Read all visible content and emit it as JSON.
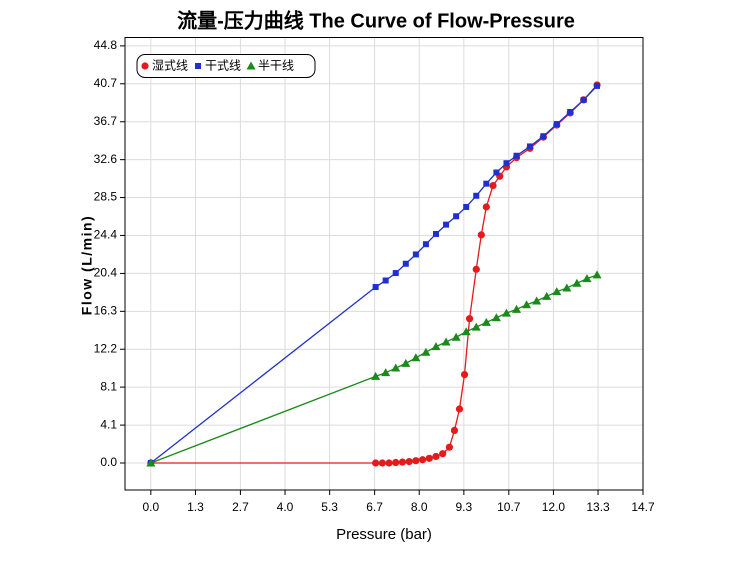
{
  "chart_data": {
    "type": "line",
    "title": "流量-压力曲线 The Curve of Flow-Pressure",
    "x_label": "Pressure (bar)",
    "y_label": "Flow (L/min)",
    "xlim": [
      -0.77,
      14.67
    ],
    "ylim": [
      -2.9,
      45.7
    ],
    "xticks": [
      {
        "value": 0,
        "label": "0.0"
      },
      {
        "value": 1.33,
        "label": "1.3"
      },
      {
        "value": 2.67,
        "label": "2.7"
      },
      {
        "value": 4,
        "label": "4.0"
      },
      {
        "value": 5.33,
        "label": "5.3"
      },
      {
        "value": 6.67,
        "label": "6.7"
      },
      {
        "value": 8,
        "label": "8.0"
      },
      {
        "value": 9.33,
        "label": "9.3"
      },
      {
        "value": 10.67,
        "label": "10.7"
      },
      {
        "value": 12,
        "label": "12.0"
      },
      {
        "value": 13.33,
        "label": "13.3"
      },
      {
        "value": 14.67,
        "label": "14.7"
      }
    ],
    "yticks": [
      {
        "value": 0,
        "label": "0.0"
      },
      {
        "value": 4.07,
        "label": "4.1"
      },
      {
        "value": 8.15,
        "label": "8.1"
      },
      {
        "value": 12.22,
        "label": "12.2"
      },
      {
        "value": 16.29,
        "label": "16.3"
      },
      {
        "value": 20.36,
        "label": "20.4"
      },
      {
        "value": 24.44,
        "label": "24.4"
      },
      {
        "value": 28.51,
        "label": "28.5"
      },
      {
        "value": 32.58,
        "label": "32.6"
      },
      {
        "value": 36.65,
        "label": "36.7"
      },
      {
        "value": 40.73,
        "label": "40.7"
      },
      {
        "value": 44.8,
        "label": "44.8"
      }
    ],
    "grid": true,
    "legend": "top-left",
    "series": [
      {
        "name": "湿式线",
        "color": "#e41a1c",
        "marker": "circle",
        "x": [
          0,
          6.7,
          6.9,
          7.1,
          7.3,
          7.5,
          7.7,
          7.9,
          8.1,
          8.3,
          8.5,
          8.7,
          8.9,
          9.05,
          9.2,
          9.35,
          9.5,
          9.7,
          9.85,
          10.0,
          10.2,
          10.4,
          10.6,
          10.9,
          11.3,
          11.7,
          12.1,
          12.5,
          12.9,
          13.3
        ],
        "values": [
          0,
          0,
          0,
          0,
          0.05,
          0.1,
          0.15,
          0.25,
          0.35,
          0.5,
          0.7,
          1.0,
          1.7,
          3.5,
          5.8,
          9.5,
          15.5,
          20.8,
          24.5,
          27.5,
          29.8,
          30.8,
          31.8,
          32.8,
          33.8,
          35.0,
          36.3,
          37.6,
          39.0,
          40.6
        ]
      },
      {
        "name": "干式线",
        "color": "#1f2fd0",
        "marker": "square",
        "x": [
          0,
          6.7,
          7.0,
          7.3,
          7.6,
          7.9,
          8.2,
          8.5,
          8.8,
          9.1,
          9.4,
          9.7,
          10.0,
          10.3,
          10.6,
          10.9,
          11.3,
          11.7,
          12.1,
          12.5,
          12.9,
          13.3
        ],
        "values": [
          0,
          18.9,
          19.6,
          20.4,
          21.4,
          22.4,
          23.5,
          24.6,
          25.6,
          26.5,
          27.5,
          28.7,
          30.0,
          31.2,
          32.2,
          33.0,
          34.0,
          35.1,
          36.4,
          37.7,
          39.0,
          40.5
        ]
      },
      {
        "name": "半干线",
        "color": "#1a8a1a",
        "marker": "triangle",
        "x": [
          0,
          6.7,
          7.0,
          7.3,
          7.6,
          7.9,
          8.2,
          8.5,
          8.8,
          9.1,
          9.4,
          9.7,
          10.0,
          10.3,
          10.6,
          10.9,
          11.2,
          11.5,
          11.8,
          12.1,
          12.4,
          12.7,
          13.0,
          13.3
        ],
        "values": [
          0,
          9.3,
          9.7,
          10.2,
          10.7,
          11.3,
          11.9,
          12.5,
          13.0,
          13.5,
          14.1,
          14.6,
          15.1,
          15.6,
          16.1,
          16.5,
          17.0,
          17.4,
          17.9,
          18.4,
          18.8,
          19.3,
          19.8,
          20.2
        ]
      }
    ]
  }
}
